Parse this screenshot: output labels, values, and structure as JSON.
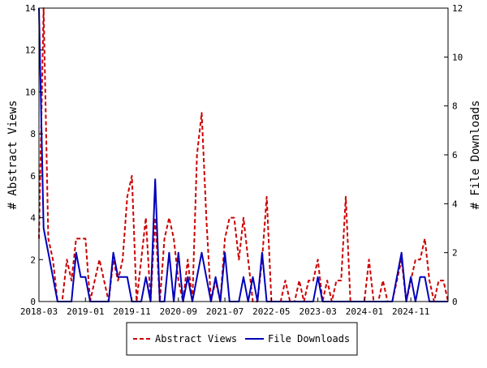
{
  "chart_data": {
    "type": "line",
    "ylabel_left": "# Abstract Views",
    "ylabel_right": "# File Downloads",
    "ylim_left": [
      0,
      14
    ],
    "yticks_left": [
      0,
      2,
      4,
      6,
      8,
      10,
      12,
      14
    ],
    "ylim_right": [
      0,
      12
    ],
    "yticks_right": [
      0,
      2,
      4,
      6,
      8,
      10,
      12
    ],
    "x_tick_labels": [
      "2018-03",
      "2019-01",
      "2019-11",
      "2020-09",
      "2021-07",
      "2022-05",
      "2023-03",
      "2024-01",
      "2024-11"
    ],
    "x_start": "2018-03",
    "x_end": "2025-07",
    "grid": false,
    "legend_position": "bottom",
    "series": [
      {
        "name": "Abstract Views",
        "axis": "left",
        "color": "#cc0000",
        "style": "dashed",
        "x": [
          "2018-03",
          "2018-04",
          "2018-05",
          "2018-06",
          "2018-07",
          "2018-08",
          "2018-09",
          "2018-10",
          "2018-11",
          "2018-12",
          "2019-01",
          "2019-02",
          "2019-03",
          "2019-04",
          "2019-05",
          "2019-06",
          "2019-07",
          "2019-08",
          "2019-09",
          "2019-10",
          "2019-11",
          "2019-12",
          "2020-01",
          "2020-02",
          "2020-03",
          "2020-04",
          "2020-05",
          "2020-06",
          "2020-07",
          "2020-08",
          "2020-09",
          "2020-10",
          "2020-11",
          "2020-12",
          "2021-01",
          "2021-02",
          "2021-03",
          "2021-04",
          "2021-05",
          "2021-06",
          "2021-07",
          "2021-08",
          "2021-09",
          "2021-10",
          "2021-11",
          "2021-12",
          "2022-01",
          "2022-02",
          "2022-03",
          "2022-04",
          "2022-05",
          "2022-06",
          "2022-07",
          "2022-08",
          "2022-09",
          "2022-10",
          "2022-11",
          "2022-12",
          "2023-01",
          "2023-02",
          "2023-03",
          "2023-04",
          "2023-05",
          "2023-06",
          "2023-07",
          "2023-08",
          "2023-09",
          "2023-10",
          "2023-11",
          "2023-12",
          "2024-01",
          "2024-02",
          "2024-03",
          "2024-04",
          "2024-05",
          "2024-06",
          "2024-07",
          "2024-08",
          "2024-09",
          "2024-10",
          "2024-11",
          "2024-12",
          "2025-01",
          "2025-02",
          "2025-03",
          "2025-04",
          "2025-05",
          "2025-06",
          "2025-07"
        ],
        "values": [
          3,
          14,
          3,
          2,
          0,
          0,
          2,
          1,
          3,
          3,
          3,
          0,
          1,
          2,
          1,
          0,
          2,
          1,
          2,
          5,
          6,
          0,
          2,
          4,
          0,
          4,
          0,
          3,
          4,
          3,
          1,
          0,
          2,
          0,
          7,
          9,
          4,
          0,
          1,
          0,
          3,
          4,
          4,
          2,
          4,
          2,
          0,
          0,
          2,
          5,
          0,
          0,
          0,
          1,
          0,
          0,
          1,
          0,
          1,
          1,
          2,
          0,
          1,
          0,
          1,
          1,
          5,
          0,
          0,
          0,
          0,
          2,
          0,
          0,
          1,
          0,
          0,
          1,
          2,
          0,
          1,
          2,
          2,
          3,
          1,
          0,
          1,
          1,
          0
        ]
      },
      {
        "name": "File Downloads",
        "axis": "right",
        "color": "#0000bb",
        "style": "solid",
        "x": [
          "2018-03",
          "2018-04",
          "2018-05",
          "2018-06",
          "2018-07",
          "2018-08",
          "2018-09",
          "2018-10",
          "2018-11",
          "2018-12",
          "2019-01",
          "2019-02",
          "2019-03",
          "2019-04",
          "2019-05",
          "2019-06",
          "2019-07",
          "2019-08",
          "2019-09",
          "2019-10",
          "2019-11",
          "2019-12",
          "2020-01",
          "2020-02",
          "2020-03",
          "2020-04",
          "2020-05",
          "2020-06",
          "2020-07",
          "2020-08",
          "2020-09",
          "2020-10",
          "2020-11",
          "2020-12",
          "2021-01",
          "2021-02",
          "2021-03",
          "2021-04",
          "2021-05",
          "2021-06",
          "2021-07",
          "2021-08",
          "2021-09",
          "2021-10",
          "2021-11",
          "2021-12",
          "2022-01",
          "2022-02",
          "2022-03",
          "2022-04",
          "2022-05",
          "2022-06",
          "2022-07",
          "2022-08",
          "2022-09",
          "2022-10",
          "2022-11",
          "2022-12",
          "2023-01",
          "2023-02",
          "2023-03",
          "2023-04",
          "2023-05",
          "2023-06",
          "2023-07",
          "2023-08",
          "2023-09",
          "2023-10",
          "2023-11",
          "2023-12",
          "2024-01",
          "2024-02",
          "2024-03",
          "2024-04",
          "2024-05",
          "2024-06",
          "2024-07",
          "2024-08",
          "2024-09",
          "2024-10",
          "2024-11",
          "2024-12",
          "2025-01",
          "2025-02",
          "2025-03",
          "2025-04",
          "2025-05",
          "2025-06",
          "2025-07"
        ],
        "values": [
          12,
          3,
          2,
          1,
          0,
          0,
          0,
          0,
          2,
          1,
          1,
          0,
          0,
          0,
          0,
          0,
          2,
          1,
          1,
          1,
          0,
          0,
          0,
          1,
          0,
          5,
          0,
          0,
          2,
          0,
          2,
          0,
          1,
          0,
          1,
          2,
          1,
          0,
          1,
          0,
          2,
          0,
          0,
          0,
          1,
          0,
          1,
          0,
          2,
          0,
          0,
          0,
          0,
          0,
          0,
          0,
          0,
          0,
          0,
          0,
          1,
          0,
          0,
          0,
          0,
          0,
          0,
          0,
          0,
          0,
          0,
          0,
          0,
          0,
          0,
          0,
          0,
          1,
          2,
          0,
          1,
          0,
          1,
          1,
          0,
          0,
          0,
          0,
          0
        ]
      }
    ]
  }
}
